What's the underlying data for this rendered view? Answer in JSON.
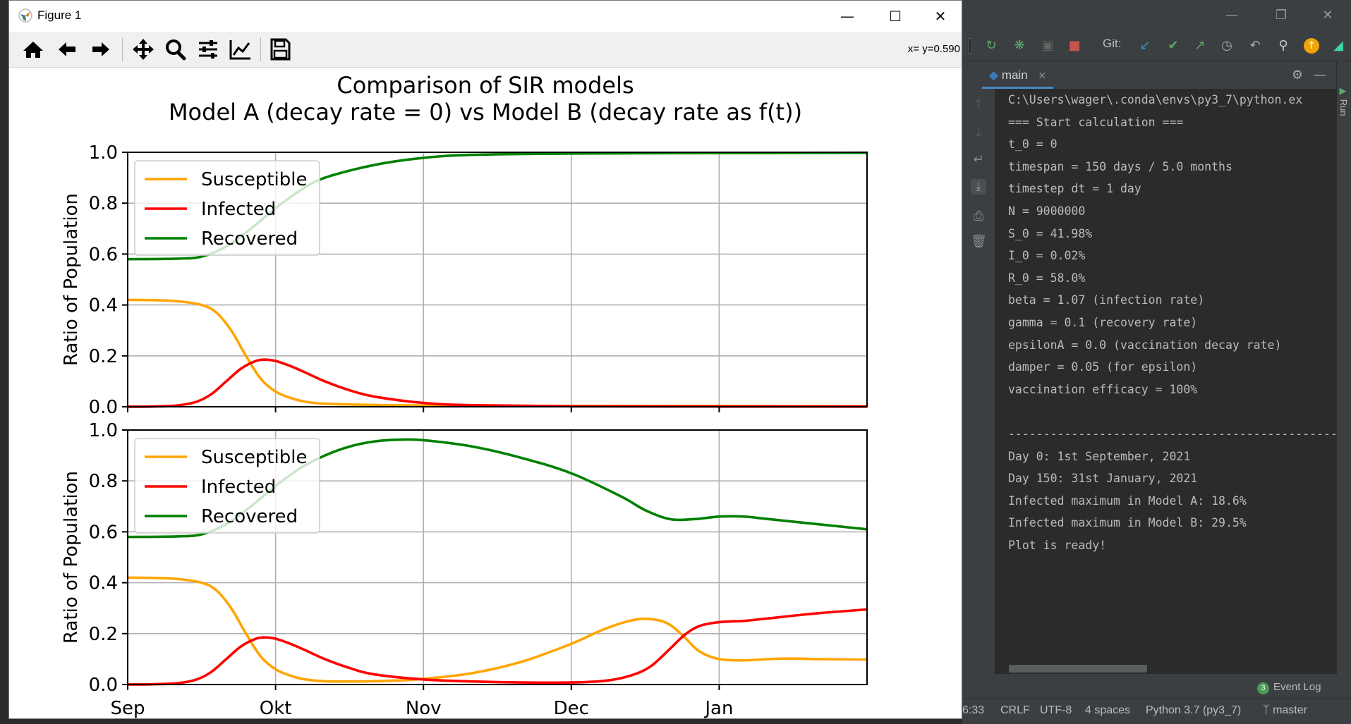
{
  "figure_window": {
    "title": "Figure 1",
    "coord_readout": "x= y=0.590",
    "toolbar": [
      "home-icon",
      "back-arrow-icon",
      "forward-arrow-icon",
      "pan-move-icon",
      "zoom-magnifier-icon",
      "configure-subplots-icon",
      "edit-axes-icon",
      "save-disk-icon"
    ]
  },
  "chart_data": [
    {
      "type": "line",
      "title": "Comparison of SIR models\nModel A (decay rate = 0) vs Model B (decay rate as f(t))",
      "title_lines": [
        "Comparison of SIR models",
        "Model A (decay rate = 0) vs Model B (decay rate as f(t))"
      ],
      "xlabel": "",
      "ylabel": "Ratio of Population",
      "xlim": [
        0,
        150
      ],
      "ylim": [
        0,
        1.0
      ],
      "yticks": [
        "0.0",
        "0.2",
        "0.4",
        "0.6",
        "0.8",
        "1.0"
      ],
      "xticks": [
        0,
        30,
        60,
        90,
        120
      ],
      "xtick_labels": [
        "Sep",
        "Okt",
        "Nov",
        "Dec",
        "Jan"
      ],
      "grid": true,
      "legend_position": "upper-left",
      "series": [
        {
          "name": "Susceptible",
          "color": "#ffa500",
          "x": [
            0,
            5,
            10,
            15,
            18,
            21,
            24,
            27,
            30,
            33,
            36,
            40,
            50,
            60,
            90,
            120,
            150
          ],
          "y": [
            0.42,
            0.419,
            0.415,
            0.4,
            0.37,
            0.3,
            0.2,
            0.11,
            0.06,
            0.035,
            0.02,
            0.012,
            0.007,
            0.005,
            0.003,
            0.003,
            0.002
          ]
        },
        {
          "name": "Infected",
          "color": "#ff0000",
          "x": [
            0,
            5,
            10,
            14,
            17,
            20,
            23,
            26,
            28,
            30,
            33,
            36,
            40,
            45,
            50,
            60,
            70,
            90,
            120,
            150
          ],
          "y": [
            0.0002,
            0.001,
            0.005,
            0.02,
            0.05,
            0.1,
            0.15,
            0.18,
            0.185,
            0.18,
            0.16,
            0.135,
            0.1,
            0.065,
            0.04,
            0.015,
            0.006,
            0.002,
            0.001,
            0.0005
          ]
        },
        {
          "name": "Recovered",
          "color": "#008000",
          "x": [
            0,
            10,
            15,
            20,
            25,
            30,
            35,
            40,
            50,
            60,
            70,
            90,
            120,
            150
          ],
          "y": [
            0.58,
            0.582,
            0.59,
            0.63,
            0.7,
            0.78,
            0.85,
            0.9,
            0.95,
            0.978,
            0.99,
            0.995,
            0.997,
            0.998
          ]
        }
      ]
    },
    {
      "type": "line",
      "xlabel": "",
      "ylabel": "Ratio of Population",
      "xlim": [
        0,
        150
      ],
      "ylim": [
        0,
        1.0
      ],
      "yticks": [
        "0.0",
        "0.2",
        "0.4",
        "0.6",
        "0.8",
        "1.0"
      ],
      "xticks": [
        0,
        30,
        60,
        90,
        120
      ],
      "xtick_labels": [
        "Sep",
        "Okt",
        "Nov",
        "Dec",
        "Jan"
      ],
      "grid": true,
      "legend_position": "upper-left",
      "series": [
        {
          "name": "Susceptible",
          "color": "#ffa500",
          "x": [
            0,
            5,
            10,
            15,
            18,
            21,
            24,
            27,
            30,
            33,
            36,
            40,
            45,
            50,
            55,
            60,
            70,
            80,
            90,
            97,
            103,
            107,
            110,
            113,
            116,
            120,
            125,
            130,
            135,
            140,
            150
          ],
          "y": [
            0.42,
            0.419,
            0.415,
            0.4,
            0.37,
            0.3,
            0.2,
            0.11,
            0.06,
            0.035,
            0.02,
            0.013,
            0.012,
            0.013,
            0.016,
            0.022,
            0.045,
            0.09,
            0.16,
            0.22,
            0.255,
            0.255,
            0.235,
            0.185,
            0.13,
            0.1,
            0.095,
            0.1,
            0.102,
            0.1,
            0.098
          ]
        },
        {
          "name": "Infected",
          "color": "#ff0000",
          "x": [
            0,
            5,
            10,
            14,
            17,
            20,
            23,
            26,
            28,
            30,
            33,
            36,
            40,
            45,
            50,
            60,
            70,
            80,
            90,
            97,
            102,
            106,
            110,
            113,
            116,
            120,
            125,
            130,
            140,
            150
          ],
          "y": [
            0.0002,
            0.001,
            0.005,
            0.02,
            0.05,
            0.1,
            0.15,
            0.18,
            0.185,
            0.18,
            0.16,
            0.135,
            0.1,
            0.065,
            0.04,
            0.02,
            0.012,
            0.008,
            0.008,
            0.015,
            0.035,
            0.07,
            0.14,
            0.195,
            0.23,
            0.245,
            0.25,
            0.26,
            0.28,
            0.295
          ]
        },
        {
          "name": "Recovered",
          "color": "#008000",
          "x": [
            0,
            10,
            15,
            20,
            25,
            30,
            35,
            40,
            45,
            50,
            55,
            60,
            70,
            80,
            90,
            100,
            105,
            110,
            115,
            120,
            125,
            130,
            140,
            150
          ],
          "y": [
            0.58,
            0.582,
            0.59,
            0.63,
            0.7,
            0.78,
            0.85,
            0.9,
            0.935,
            0.955,
            0.962,
            0.96,
            0.935,
            0.89,
            0.83,
            0.74,
            0.685,
            0.65,
            0.65,
            0.66,
            0.66,
            0.65,
            0.63,
            0.61
          ]
        }
      ]
    }
  ],
  "ide": {
    "git_label": "Git:",
    "run_tab": "main",
    "run_vertical_label": "Run",
    "console_lines": [
      "C:\\Users\\wager\\.conda\\envs\\py3_7\\python.ex",
      "=== Start calculation ===",
      "t_0 = 0",
      "timespan = 150 days / 5.0 months",
      "timestep dt = 1 day",
      "N = 9000000",
      "S_0 = 41.98%",
      "I_0 = 0.02%",
      "R_0 = 58.0%",
      "beta = 1.07 (infection rate)",
      "gamma = 0.1 (recovery rate)",
      "epsilonA = 0.0 (vaccination decay rate)",
      "damper = 0.05 (for epsilon)",
      "vaccination efficacy = 100%",
      "",
      "------------------------------------------------",
      "Day 0: 1st September, 2021",
      "Day 150: 31st January, 2021",
      "Infected maximum in Model A: 18.6%",
      "Infected maximum in Model B: 29.5%",
      "Plot is ready!"
    ],
    "event_log": {
      "count": "3",
      "label": "Event Log"
    },
    "status": {
      "position": "6:33",
      "line_sep": "CRLF",
      "encoding": "UTF-8",
      "indent": "4 spaces",
      "interpreter": "Python 3.7 (py3_7)",
      "branch": "master"
    }
  }
}
